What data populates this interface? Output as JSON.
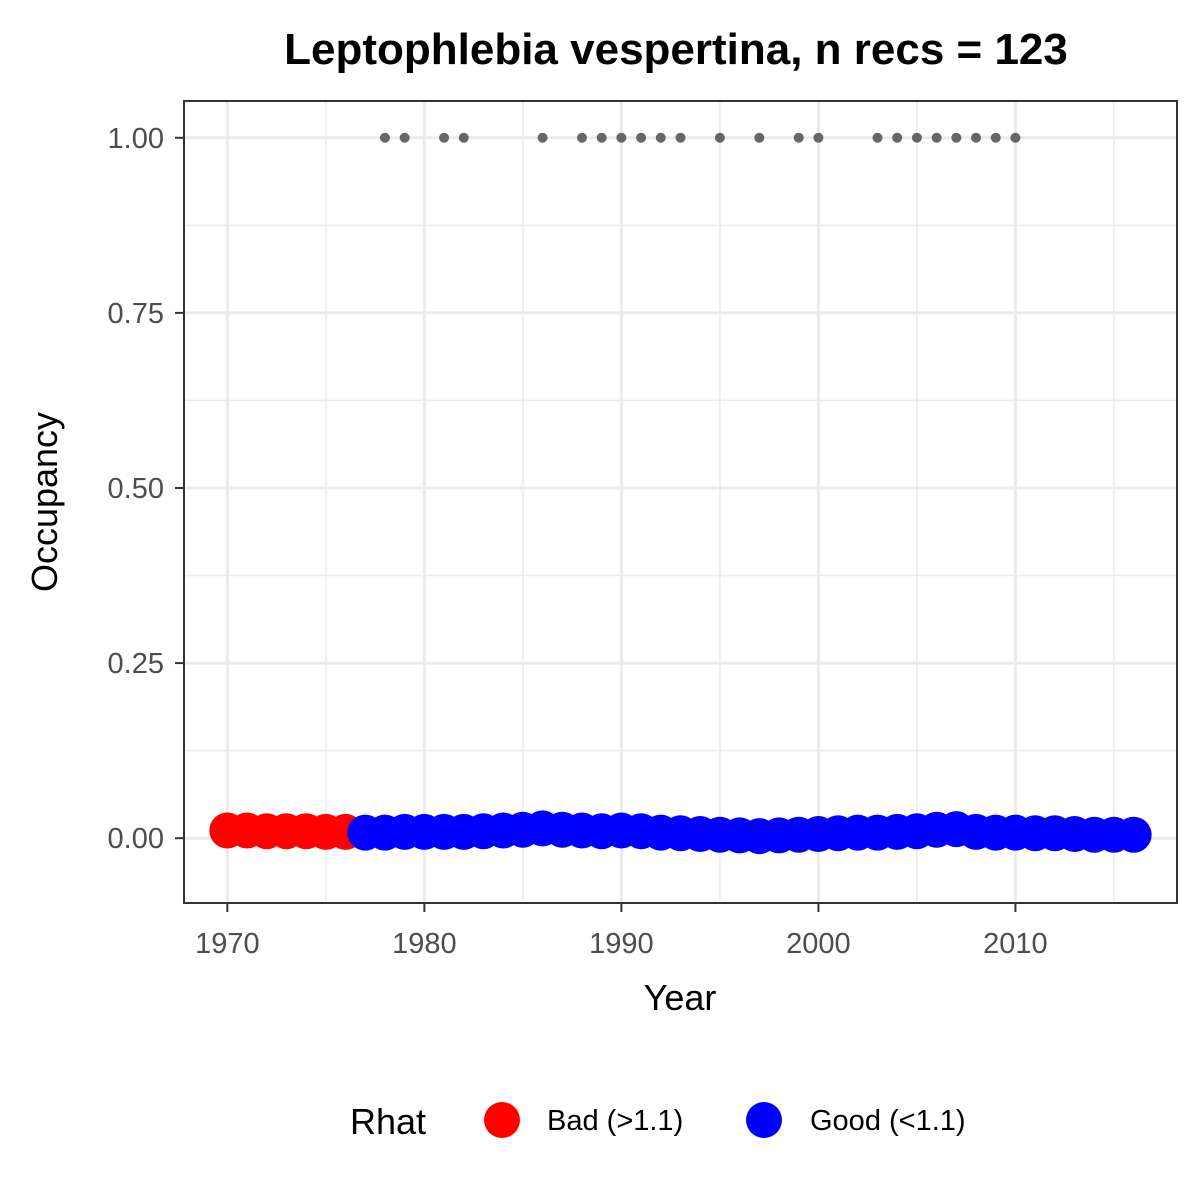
{
  "chart_data": {
    "type": "scatter",
    "title": "Leptophlebia vespertina, n recs = 123",
    "xlabel": "Year",
    "ylabel": "Occupancy",
    "xlim": [
      1967.8,
      2018.2
    ],
    "ylim": [
      -0.0925,
      1.0525
    ],
    "x_ticks": [
      1970,
      1980,
      1990,
      2000,
      2010
    ],
    "x_tick_labels": [
      "1970",
      "1980",
      "1990",
      "2000",
      "2010"
    ],
    "y_ticks": [
      0,
      0.25,
      0.5,
      0.75,
      1
    ],
    "y_tick_labels": [
      "0.00",
      "0.25",
      "0.50",
      "0.75",
      "1.00"
    ],
    "grid": true,
    "legend": {
      "title": "Rhat",
      "position": "bottom",
      "entries": [
        {
          "label": "Bad (>1.1)",
          "color": "#ff0000"
        },
        {
          "label": "Good (<1.1)",
          "color": "#0000ff"
        }
      ]
    },
    "series": [
      {
        "name": "Bad (>1.1)",
        "color": "#ff0000",
        "x": [
          1970,
          1971,
          1972,
          1973,
          1974,
          1975,
          1976
        ],
        "y": [
          0.011,
          0.011,
          0.01,
          0.01,
          0.01,
          0.009,
          0.009
        ]
      },
      {
        "name": "Good (<1.1)",
        "color": "#0000ff",
        "x": [
          1977,
          1978,
          1979,
          1980,
          1981,
          1982,
          1983,
          1984,
          1985,
          1986,
          1987,
          1988,
          1989,
          1990,
          1991,
          1992,
          1993,
          1994,
          1995,
          1996,
          1997,
          1998,
          1999,
          2000,
          2001,
          2002,
          2003,
          2004,
          2005,
          2006,
          2007,
          2008,
          2009,
          2010,
          2011,
          2012,
          2013,
          2014,
          2015,
          2016
        ],
        "y": [
          0.008,
          0.008,
          0.009,
          0.009,
          0.009,
          0.009,
          0.01,
          0.011,
          0.012,
          0.014,
          0.012,
          0.011,
          0.01,
          0.011,
          0.01,
          0.008,
          0.007,
          0.006,
          0.005,
          0.004,
          0.003,
          0.004,
          0.005,
          0.006,
          0.007,
          0.008,
          0.008,
          0.009,
          0.01,
          0.012,
          0.013,
          0.009,
          0.008,
          0.008,
          0.007,
          0.007,
          0.006,
          0.005,
          0.005,
          0.005
        ]
      }
    ],
    "records": {
      "color": "#666666",
      "y": 1.0,
      "years": [
        1978,
        1979,
        1981,
        1982,
        1986,
        1988,
        1989,
        1990,
        1991,
        1992,
        1993,
        1995,
        1997,
        1999,
        2000,
        2003,
        2004,
        2005,
        2006,
        2007,
        2008,
        2009,
        2010
      ]
    }
  }
}
